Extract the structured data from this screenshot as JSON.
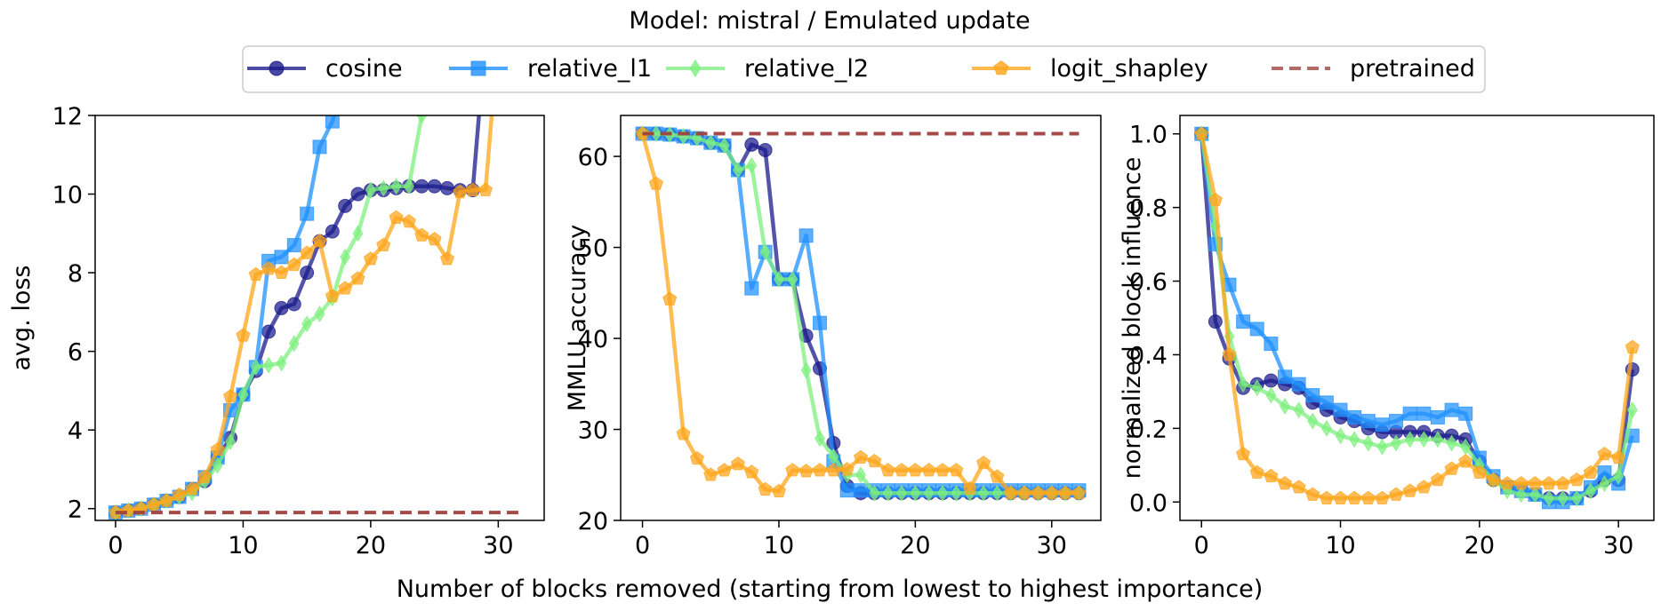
{
  "title": "Model: mistral / Emulated update",
  "xlabel": "Number of blocks removed (starting from lowest to highest importance)",
  "legend": [
    {
      "name": "cosine",
      "color": "#1a1a8c",
      "marker": "circle",
      "dashed": false
    },
    {
      "name": "relative_l1",
      "color": "#1e90ff",
      "marker": "square",
      "dashed": false
    },
    {
      "name": "relative_l2",
      "color": "#7ef07e",
      "marker": "diamond",
      "dashed": false
    },
    {
      "name": "logit_shapley",
      "color": "#ffa51a",
      "marker": "pentagon",
      "dashed": false
    },
    {
      "name": "pretrained",
      "color": "#a0403c",
      "marker": "none",
      "dashed": true
    }
  ],
  "chart_data": [
    {
      "type": "line",
      "ylabel": "avg. loss",
      "xlim": [
        -1.6,
        33.6
      ],
      "ylim": [
        1.7,
        12
      ],
      "xticks": [
        0,
        10,
        20,
        30
      ],
      "yticks": [
        2,
        4,
        6,
        8,
        10,
        12
      ],
      "series": [
        {
          "name": "cosine",
          "x": [
            0,
            1,
            2,
            3,
            4,
            5,
            6,
            7,
            8,
            9,
            10,
            11,
            12,
            13,
            14,
            15,
            16,
            17,
            18,
            19,
            20,
            21,
            22,
            23,
            24,
            25,
            26,
            27,
            28,
            29
          ],
          "values": [
            1.9,
            1.95,
            2.0,
            2.1,
            2.2,
            2.3,
            2.5,
            2.7,
            3.3,
            3.8,
            4.9,
            5.5,
            6.5,
            7.1,
            7.2,
            8.0,
            8.8,
            9.05,
            9.7,
            10.0,
            10.1,
            10.1,
            10.15,
            10.2,
            10.2,
            10.2,
            10.15,
            10.1,
            10.1,
            14
          ]
        },
        {
          "name": "relative_l1",
          "x": [
            0,
            1,
            2,
            3,
            4,
            5,
            6,
            7,
            8,
            9,
            10,
            11,
            12,
            13,
            14,
            15,
            16,
            17,
            18
          ],
          "values": [
            1.9,
            1.95,
            2.0,
            2.1,
            2.2,
            2.3,
            2.5,
            2.8,
            3.3,
            4.5,
            4.9,
            5.6,
            8.3,
            8.4,
            8.7,
            9.5,
            11.2,
            11.85,
            13
          ]
        },
        {
          "name": "relative_l2",
          "x": [
            0,
            1,
            2,
            3,
            4,
            5,
            6,
            7,
            8,
            9,
            10,
            11,
            12,
            13,
            14,
            15,
            16,
            17,
            18,
            19,
            20,
            21,
            22,
            23,
            24,
            25
          ],
          "values": [
            1.9,
            1.95,
            2.0,
            2.1,
            2.2,
            2.3,
            2.4,
            2.7,
            3.1,
            3.7,
            4.9,
            5.6,
            5.65,
            5.7,
            6.2,
            6.7,
            6.95,
            7.35,
            8.4,
            9.0,
            10.1,
            10.15,
            10.2,
            10.2,
            12,
            14
          ]
        },
        {
          "name": "logit_shapley",
          "x": [
            0,
            1,
            2,
            3,
            4,
            5,
            6,
            7,
            8,
            9,
            10,
            11,
            12,
            13,
            14,
            15,
            16,
            17,
            18,
            19,
            20,
            21,
            22,
            23,
            24,
            25,
            26,
            27,
            28,
            29,
            30
          ],
          "values": [
            1.9,
            1.95,
            2.0,
            2.1,
            2.2,
            2.35,
            2.5,
            2.8,
            3.5,
            4.85,
            6.4,
            7.95,
            8.1,
            8.0,
            8.2,
            8.5,
            8.8,
            7.4,
            7.6,
            7.85,
            8.35,
            8.7,
            9.4,
            9.3,
            8.95,
            8.85,
            8.35,
            10.05,
            10.1,
            10.1,
            14
          ]
        },
        {
          "name": "pretrained",
          "x": [
            0,
            32
          ],
          "values": [
            1.9,
            1.9
          ]
        }
      ]
    },
    {
      "type": "line",
      "ylabel": "MMLU accuracy",
      "xlim": [
        -1.6,
        33.6
      ],
      "ylim": [
        20,
        64.5
      ],
      "xticks": [
        0,
        10,
        20,
        30
      ],
      "yticks": [
        20,
        30,
        40,
        50,
        60
      ],
      "series": [
        {
          "name": "cosine",
          "x": [
            0,
            1,
            2,
            3,
            4,
            5,
            6,
            7,
            8,
            9,
            10,
            11,
            12,
            13,
            14,
            15,
            16,
            17,
            18,
            19,
            20,
            21,
            22,
            23,
            24,
            25,
            26,
            27,
            28,
            29,
            30,
            31,
            32
          ],
          "values": [
            62.5,
            62.5,
            62.4,
            62.2,
            62.0,
            61.5,
            61.2,
            58.5,
            61.3,
            60.7,
            46.5,
            46.5,
            40.3,
            36.7,
            28.5,
            23.8,
            23.0,
            23.0,
            23.0,
            23.0,
            23.0,
            23.0,
            23.0,
            23.0,
            23.0,
            23.0,
            23.0,
            23.0,
            23.0,
            23.0,
            23.0,
            23.0,
            23.0
          ]
        },
        {
          "name": "relative_l1",
          "x": [
            0,
            1,
            2,
            3,
            4,
            5,
            6,
            7,
            8,
            9,
            10,
            11,
            12,
            13,
            14,
            15,
            16,
            17,
            18,
            19,
            20,
            21,
            22,
            23,
            24,
            25,
            26,
            27,
            28,
            29,
            30,
            31,
            32
          ],
          "values": [
            62.5,
            62.5,
            62.4,
            62.2,
            62.0,
            61.5,
            61.2,
            58.5,
            45.5,
            49.5,
            46.5,
            46.5,
            51.3,
            41.7,
            26.5,
            23.3,
            23.3,
            23.3,
            23.3,
            23.3,
            23.3,
            23.3,
            23.3,
            23.3,
            23.3,
            23.3,
            23.3,
            23.3,
            23.3,
            23.3,
            23.3,
            23.3,
            23.3
          ]
        },
        {
          "name": "relative_l2",
          "x": [
            0,
            1,
            2,
            3,
            4,
            5,
            6,
            7,
            8,
            9,
            10,
            11,
            12,
            13,
            14,
            15,
            16,
            17,
            18,
            19,
            20,
            21,
            22,
            23,
            24,
            25,
            26,
            27,
            28,
            29,
            30,
            31,
            32
          ],
          "values": [
            62.5,
            62.5,
            62.4,
            62.2,
            62.0,
            61.5,
            61.2,
            58.5,
            59.0,
            49.5,
            46.5,
            46.5,
            36.5,
            29.0,
            27.0,
            25.0,
            25.0,
            23.0,
            23.0,
            23.0,
            23.0,
            23.0,
            23.0,
            23.0,
            23.0,
            23.0,
            23.0,
            23.0,
            23.0,
            23.0,
            23.0,
            23.0,
            23.0
          ]
        },
        {
          "name": "logit_shapley",
          "x": [
            0,
            1,
            2,
            3,
            4,
            5,
            6,
            7,
            8,
            9,
            10,
            11,
            12,
            13,
            14,
            15,
            16,
            17,
            18,
            19,
            20,
            21,
            22,
            23,
            24,
            25,
            26,
            27,
            28,
            29,
            30,
            31,
            32
          ],
          "values": [
            62.5,
            57.0,
            44.3,
            29.5,
            26.8,
            25.0,
            25.5,
            26.2,
            25.3,
            23.4,
            23.2,
            25.5,
            25.4,
            25.5,
            25.5,
            25.6,
            26.9,
            26.5,
            25.5,
            25.5,
            25.5,
            25.5,
            25.5,
            25.5,
            23.5,
            26.3,
            24.8,
            23.0,
            23.0,
            23.0,
            23.0,
            23.0,
            23.0
          ]
        },
        {
          "name": "pretrained",
          "x": [
            0,
            32
          ],
          "values": [
            62.5,
            62.5
          ]
        }
      ]
    },
    {
      "type": "line",
      "ylabel": "normalized block influence",
      "xlim": [
        -1.55,
        32.55
      ],
      "ylim": [
        -0.05,
        1.05
      ],
      "xticks": [
        0,
        10,
        20,
        30
      ],
      "yticks": [
        0.0,
        0.2,
        0.4,
        0.6,
        0.8,
        1.0
      ],
      "yticklabels": [
        "0.0",
        "0.2",
        "0.4",
        "0.6",
        "0.8",
        "1.0"
      ],
      "series": [
        {
          "name": "cosine",
          "x": [
            0,
            1,
            2,
            3,
            4,
            5,
            6,
            7,
            8,
            9,
            10,
            11,
            12,
            13,
            14,
            15,
            16,
            17,
            18,
            19,
            20,
            21,
            22,
            23,
            24,
            25,
            26,
            27,
            28,
            29,
            30,
            31
          ],
          "values": [
            1.0,
            0.49,
            0.39,
            0.31,
            0.32,
            0.33,
            0.32,
            0.31,
            0.27,
            0.25,
            0.23,
            0.22,
            0.2,
            0.19,
            0.19,
            0.19,
            0.19,
            0.18,
            0.18,
            0.17,
            0.11,
            0.06,
            0.04,
            0.03,
            0.02,
            0.01,
            0.01,
            0.01,
            0.03,
            0.06,
            0.06,
            0.36
          ]
        },
        {
          "name": "relative_l1",
          "x": [
            0,
            1,
            2,
            3,
            4,
            5,
            6,
            7,
            8,
            9,
            10,
            11,
            12,
            13,
            14,
            15,
            16,
            17,
            18,
            19,
            20,
            21,
            22,
            23,
            24,
            25,
            26,
            27,
            28,
            29,
            30,
            31
          ],
          "values": [
            1.0,
            0.7,
            0.59,
            0.49,
            0.47,
            0.43,
            0.34,
            0.32,
            0.29,
            0.27,
            0.25,
            0.23,
            0.22,
            0.21,
            0.22,
            0.24,
            0.24,
            0.23,
            0.25,
            0.24,
            0.12,
            0.07,
            0.04,
            0.03,
            0.02,
            0.0,
            0.0,
            0.01,
            0.04,
            0.08,
            0.05,
            0.18
          ]
        },
        {
          "name": "relative_l2",
          "x": [
            0,
            1,
            2,
            3,
            4,
            5,
            6,
            7,
            8,
            9,
            10,
            11,
            12,
            13,
            14,
            15,
            16,
            17,
            18,
            19,
            20,
            21,
            22,
            23,
            24,
            25,
            26,
            27,
            28,
            29,
            30,
            31
          ],
          "values": [
            1.0,
            0.75,
            0.45,
            0.32,
            0.31,
            0.29,
            0.26,
            0.25,
            0.22,
            0.2,
            0.18,
            0.17,
            0.16,
            0.15,
            0.16,
            0.17,
            0.17,
            0.17,
            0.16,
            0.15,
            0.1,
            0.06,
            0.03,
            0.02,
            0.02,
            0.01,
            0.01,
            0.01,
            0.03,
            0.05,
            0.07,
            0.25
          ]
        },
        {
          "name": "logit_shapley",
          "x": [
            0,
            1,
            2,
            3,
            4,
            5,
            6,
            7,
            8,
            9,
            10,
            11,
            12,
            13,
            14,
            15,
            16,
            17,
            18,
            19,
            20,
            21,
            22,
            23,
            24,
            25,
            26,
            27,
            28,
            29,
            30,
            31
          ],
          "values": [
            1.0,
            0.82,
            0.4,
            0.13,
            0.08,
            0.07,
            0.05,
            0.04,
            0.02,
            0.01,
            0.01,
            0.01,
            0.01,
            0.01,
            0.02,
            0.03,
            0.04,
            0.06,
            0.09,
            0.11,
            0.08,
            0.06,
            0.05,
            0.05,
            0.05,
            0.05,
            0.05,
            0.06,
            0.08,
            0.13,
            0.12,
            0.42
          ]
        }
      ]
    }
  ]
}
